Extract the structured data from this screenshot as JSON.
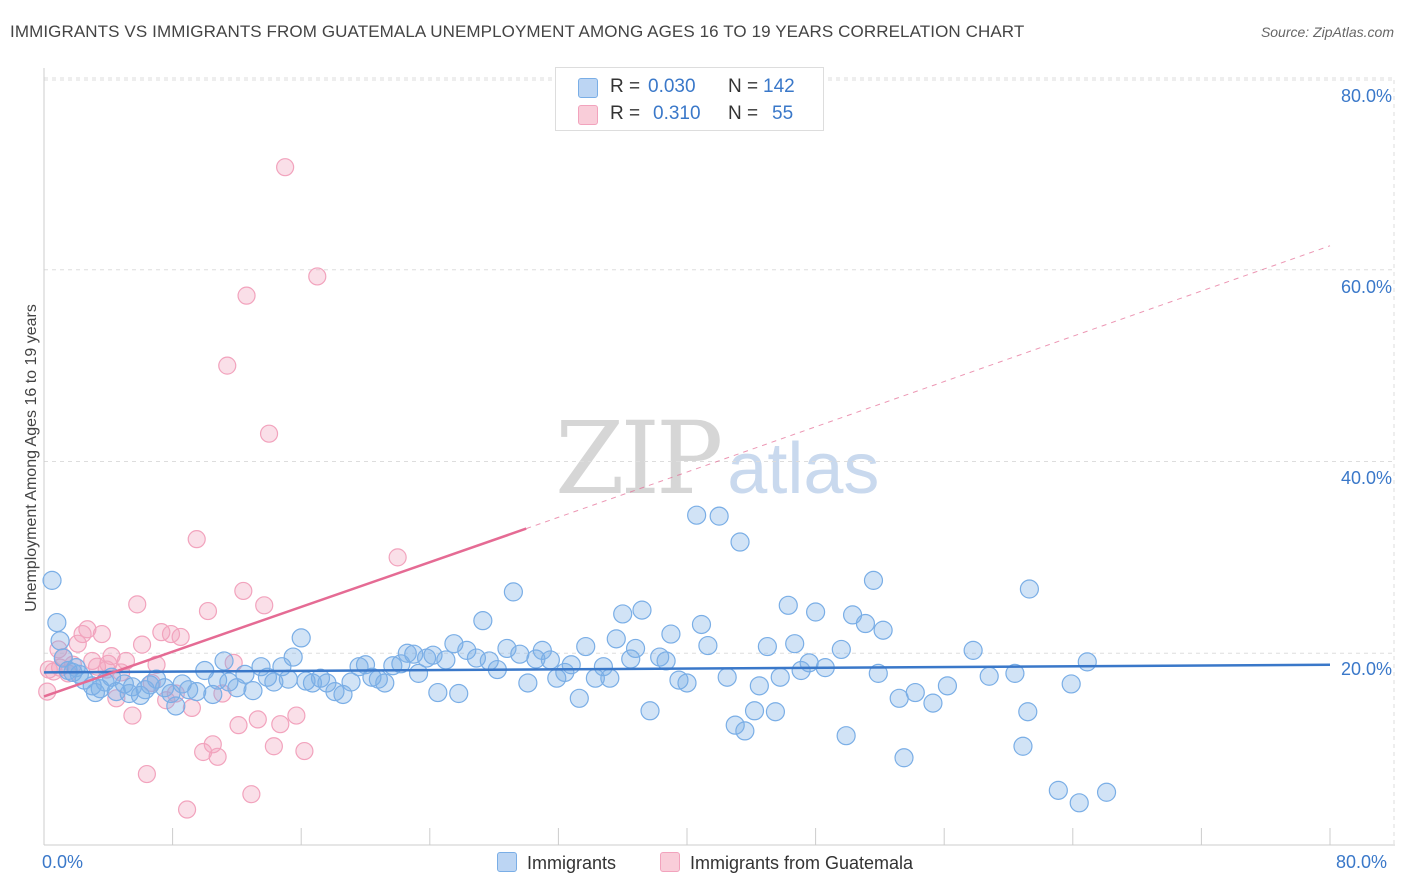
{
  "title": "IMMIGRANTS VS IMMIGRANTS FROM GUATEMALA UNEMPLOYMENT AMONG AGES 16 TO 19 YEARS CORRELATION CHART",
  "source": "Source: ZipAtlas.com",
  "watermark": {
    "zip": "ZIP",
    "atlas": "atlas"
  },
  "colors": {
    "blue": "#7aaee6",
    "blue_line": "#3a78c9",
    "pink": "#f2a3bd",
    "pink_line": "#e56b94",
    "grid": "#dddddd"
  },
  "legend": {
    "rows": [
      {
        "r_label": "R =",
        "r_value": "0.030",
        "n_label": "N =",
        "n_value": "142"
      },
      {
        "r_label": "R =",
        "r_value": "0.310",
        "n_label": "N =",
        "n_value": "55"
      }
    ]
  },
  "bottom_legend": [
    "Immigrants",
    "Immigrants from Guatemala"
  ],
  "chart_data": {
    "type": "scatter",
    "title": "IMMIGRANTS VS IMMIGRANTS FROM GUATEMALA UNEMPLOYMENT AMONG AGES 16 TO 19 YEARS CORRELATION CHART",
    "xlabel": "",
    "ylabel": "Unemployment Among Ages 16 to 19 years",
    "xlim": [
      0,
      80
    ],
    "ylim": [
      0,
      80
    ],
    "x_tick_labels": [
      "0.0%",
      "80.0%"
    ],
    "y_tick_labels": [
      "20.0%",
      "40.0%",
      "60.0%",
      "80.0%"
    ],
    "y_ticks": [
      20,
      40,
      60,
      80
    ],
    "series": [
      {
        "name": "Immigrants",
        "R": 0.03,
        "N": 142,
        "trend": {
          "x0": 0,
          "y0": 18.0,
          "x1": 80,
          "y1": 18.8,
          "style": "solid"
        },
        "points": [
          [
            0.5,
            27.6
          ],
          [
            0.8,
            23.2
          ],
          [
            1.0,
            21.3
          ],
          [
            1.2,
            19.5
          ],
          [
            1.5,
            18.2
          ],
          [
            1.8,
            18.0
          ],
          [
            2.0,
            18.5
          ],
          [
            2.2,
            17.8
          ],
          [
            2.5,
            17.2
          ],
          [
            3.0,
            16.6
          ],
          [
            3.2,
            15.9
          ],
          [
            3.5,
            16.3
          ],
          [
            3.8,
            17.0
          ],
          [
            4.2,
            17.5
          ],
          [
            4.5,
            16.0
          ],
          [
            5.0,
            16.8
          ],
          [
            5.3,
            15.8
          ],
          [
            5.5,
            16.5
          ],
          [
            6.0,
            15.6
          ],
          [
            6.3,
            16.2
          ],
          [
            6.6,
            16.7
          ],
          [
            7.0,
            17.3
          ],
          [
            7.5,
            16.4
          ],
          [
            7.9,
            15.8
          ],
          [
            8.2,
            14.5
          ],
          [
            8.6,
            16.8
          ],
          [
            9.0,
            16.2
          ],
          [
            9.5,
            16.0
          ],
          [
            10.0,
            18.2
          ],
          [
            10.5,
            15.7
          ],
          [
            10.8,
            17.2
          ],
          [
            11.2,
            19.2
          ],
          [
            11.5,
            17.0
          ],
          [
            12.0,
            16.4
          ],
          [
            12.5,
            17.8
          ],
          [
            13.0,
            16.1
          ],
          [
            13.5,
            18.6
          ],
          [
            13.9,
            17.5
          ],
          [
            14.3,
            17.0
          ],
          [
            14.8,
            18.6
          ],
          [
            15.2,
            17.3
          ],
          [
            15.5,
            19.6
          ],
          [
            16.0,
            21.6
          ],
          [
            16.3,
            17.1
          ],
          [
            16.7,
            16.9
          ],
          [
            17.2,
            17.4
          ],
          [
            17.6,
            16.9
          ],
          [
            18.1,
            16.0
          ],
          [
            18.6,
            15.7
          ],
          [
            19.1,
            17.0
          ],
          [
            19.6,
            18.6
          ],
          [
            20.0,
            18.8
          ],
          [
            20.4,
            17.5
          ],
          [
            20.8,
            17.3
          ],
          [
            21.2,
            16.9
          ],
          [
            21.7,
            18.7
          ],
          [
            22.2,
            18.9
          ],
          [
            22.6,
            20.0
          ],
          [
            23.0,
            19.9
          ],
          [
            23.3,
            17.9
          ],
          [
            23.8,
            19.5
          ],
          [
            24.2,
            19.8
          ],
          [
            24.5,
            15.9
          ],
          [
            25.0,
            19.3
          ],
          [
            25.5,
            21.0
          ],
          [
            25.8,
            15.8
          ],
          [
            26.3,
            20.3
          ],
          [
            26.9,
            19.5
          ],
          [
            27.3,
            23.4
          ],
          [
            27.7,
            19.2
          ],
          [
            28.2,
            18.3
          ],
          [
            28.8,
            20.5
          ],
          [
            29.2,
            26.4
          ],
          [
            29.6,
            19.9
          ],
          [
            30.1,
            16.9
          ],
          [
            30.6,
            19.4
          ],
          [
            31.0,
            20.3
          ],
          [
            31.5,
            19.3
          ],
          [
            31.9,
            17.4
          ],
          [
            32.4,
            18.0
          ],
          [
            32.8,
            18.8
          ],
          [
            33.3,
            15.3
          ],
          [
            33.7,
            20.7
          ],
          [
            34.3,
            17.4
          ],
          [
            34.8,
            18.6
          ],
          [
            35.2,
            17.4
          ],
          [
            35.6,
            21.5
          ],
          [
            36.0,
            24.1
          ],
          [
            36.5,
            19.4
          ],
          [
            36.8,
            20.5
          ],
          [
            37.2,
            24.5
          ],
          [
            37.7,
            14.0
          ],
          [
            38.3,
            19.6
          ],
          [
            38.7,
            19.2
          ],
          [
            39.0,
            22.0
          ],
          [
            39.5,
            17.2
          ],
          [
            40.0,
            16.9
          ],
          [
            40.6,
            34.4
          ],
          [
            40.9,
            23.0
          ],
          [
            41.3,
            20.8
          ],
          [
            42.0,
            34.3
          ],
          [
            42.5,
            17.5
          ],
          [
            43.0,
            12.5
          ],
          [
            43.3,
            31.6
          ],
          [
            43.6,
            11.9
          ],
          [
            44.2,
            14.0
          ],
          [
            44.5,
            16.6
          ],
          [
            45.0,
            20.7
          ],
          [
            45.5,
            13.9
          ],
          [
            45.8,
            17.5
          ],
          [
            46.3,
            25.0
          ],
          [
            46.7,
            21.0
          ],
          [
            47.1,
            18.2
          ],
          [
            47.6,
            19.0
          ],
          [
            48.0,
            24.3
          ],
          [
            48.6,
            18.5
          ],
          [
            49.6,
            20.4
          ],
          [
            49.9,
            11.4
          ],
          [
            50.3,
            24.0
          ],
          [
            51.1,
            23.1
          ],
          [
            51.6,
            27.6
          ],
          [
            51.9,
            17.9
          ],
          [
            52.2,
            22.4
          ],
          [
            53.2,
            15.3
          ],
          [
            53.5,
            9.1
          ],
          [
            54.2,
            15.9
          ],
          [
            55.3,
            14.8
          ],
          [
            56.2,
            16.6
          ],
          [
            57.8,
            20.3
          ],
          [
            58.8,
            17.6
          ],
          [
            60.4,
            17.9
          ],
          [
            60.9,
            10.3
          ],
          [
            61.2,
            13.9
          ],
          [
            61.3,
            26.7
          ],
          [
            63.1,
            5.7
          ],
          [
            63.9,
            16.8
          ],
          [
            64.4,
            4.4
          ],
          [
            64.9,
            19.1
          ],
          [
            66.1,
            5.5
          ]
        ]
      },
      {
        "name": "Immigrants from Guatemala",
        "R": 0.31,
        "N": 55,
        "trend": {
          "x0": 0,
          "y0": 15.5,
          "x1": 30,
          "y1": 33.0,
          "x_dash_end": 80,
          "y_dash_end": 62.5,
          "style": "solid-then-dashed"
        },
        "points": [
          [
            0.2,
            16.0
          ],
          [
            0.3,
            18.3
          ],
          [
            0.6,
            18.1
          ],
          [
            0.9,
            20.4
          ],
          [
            1.2,
            19.6
          ],
          [
            1.5,
            17.9
          ],
          [
            1.8,
            18.8
          ],
          [
            2.1,
            21.0
          ],
          [
            2.4,
            22.0
          ],
          [
            2.7,
            22.5
          ],
          [
            3.0,
            19.2
          ],
          [
            3.3,
            18.6
          ],
          [
            3.6,
            22.0
          ],
          [
            3.9,
            18.3
          ],
          [
            4.2,
            19.7
          ],
          [
            4.5,
            15.3
          ],
          [
            4.8,
            18.0
          ],
          [
            5.1,
            19.2
          ],
          [
            5.5,
            13.5
          ],
          [
            5.8,
            25.1
          ],
          [
            6.1,
            20.9
          ],
          [
            6.4,
            7.4
          ],
          [
            6.7,
            16.9
          ],
          [
            7.0,
            18.8
          ],
          [
            7.3,
            22.2
          ],
          [
            7.6,
            15.1
          ],
          [
            7.9,
            22.0
          ],
          [
            8.2,
            15.8
          ],
          [
            8.5,
            21.7
          ],
          [
            8.9,
            3.7
          ],
          [
            9.2,
            14.3
          ],
          [
            9.5,
            31.9
          ],
          [
            9.9,
            9.7
          ],
          [
            10.2,
            24.4
          ],
          [
            10.5,
            10.5
          ],
          [
            10.8,
            9.2
          ],
          [
            11.1,
            15.8
          ],
          [
            11.4,
            50.0
          ],
          [
            11.8,
            19.0
          ],
          [
            12.1,
            12.5
          ],
          [
            12.4,
            26.5
          ],
          [
            12.6,
            57.3
          ],
          [
            12.9,
            5.3
          ],
          [
            13.3,
            13.1
          ],
          [
            13.7,
            25.0
          ],
          [
            14.0,
            42.9
          ],
          [
            14.3,
            10.3
          ],
          [
            14.7,
            12.6
          ],
          [
            15.0,
            70.7
          ],
          [
            15.7,
            13.5
          ],
          [
            16.2,
            9.8
          ],
          [
            17.0,
            59.3
          ],
          [
            22.0,
            30.0
          ],
          [
            4.0,
            18.9
          ],
          [
            1.0,
            18.5
          ]
        ]
      }
    ]
  }
}
